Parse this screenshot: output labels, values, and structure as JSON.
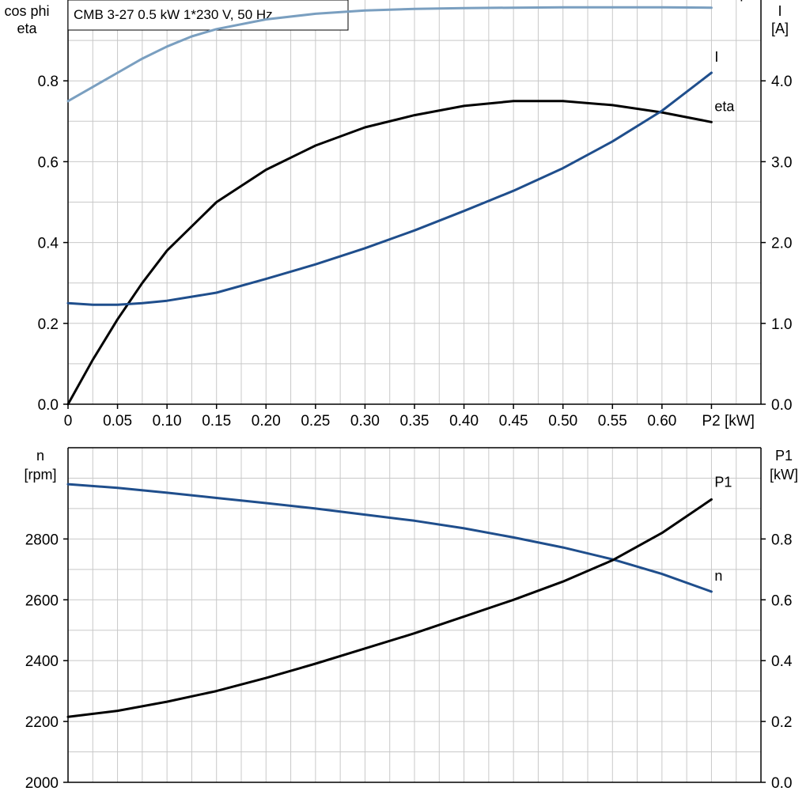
{
  "chart_data": [
    {
      "type": "line",
      "title": "CMB 3-27   0.5 kW   1*230 V, 50 Hz",
      "xlabel": "P2 [kW]",
      "x_ticks": [
        "0",
        "0.05",
        "0.10",
        "0.15",
        "0.20",
        "0.25",
        "0.30",
        "0.35",
        "0.40",
        "0.45",
        "0.50",
        "0.55",
        "0.60",
        "P2 [kW]"
      ],
      "xlim": [
        0,
        0.7
      ],
      "grid": true,
      "left_axis": {
        "label_line1": "cos phi",
        "label_line2": "eta",
        "ylim": [
          0,
          1.0
        ],
        "ticks": [
          0.0,
          0.2,
          0.4,
          0.6,
          0.8
        ],
        "tick_labels": [
          "0.0",
          "0.2",
          "0.4",
          "0.6",
          "0.8"
        ]
      },
      "right_axis": {
        "label_line1": "I",
        "label_line2": "[A]",
        "ylim": [
          0,
          5.0
        ],
        "ticks": [
          0.0,
          1.0,
          2.0,
          3.0,
          4.0
        ],
        "tick_labels": [
          "0.0",
          "1.0",
          "2.0",
          "3.0",
          "4.0"
        ]
      },
      "series": [
        {
          "name": "cos phi",
          "axis": "left",
          "color": "#7a9fc0",
          "x": [
            0,
            0.025,
            0.05,
            0.075,
            0.1,
            0.125,
            0.15,
            0.2,
            0.25,
            0.3,
            0.35,
            0.4,
            0.45,
            0.5,
            0.55,
            0.6,
            0.65
          ],
          "y": [
            0.75,
            0.785,
            0.82,
            0.855,
            0.885,
            0.91,
            0.928,
            0.952,
            0.966,
            0.974,
            0.978,
            0.98,
            0.981,
            0.982,
            0.982,
            0.982,
            0.981
          ]
        },
        {
          "name": "eta",
          "axis": "left",
          "color": "#000000",
          "x": [
            0,
            0.025,
            0.05,
            0.075,
            0.1,
            0.15,
            0.2,
            0.25,
            0.3,
            0.35,
            0.4,
            0.45,
            0.5,
            0.55,
            0.6,
            0.65
          ],
          "y": [
            0.0,
            0.11,
            0.21,
            0.3,
            0.38,
            0.5,
            0.58,
            0.64,
            0.685,
            0.715,
            0.738,
            0.75,
            0.75,
            0.74,
            0.722,
            0.698
          ]
        },
        {
          "name": "I",
          "axis": "right",
          "color": "#1f4e8c",
          "x": [
            0,
            0.025,
            0.05,
            0.075,
            0.1,
            0.15,
            0.2,
            0.25,
            0.3,
            0.35,
            0.4,
            0.45,
            0.5,
            0.55,
            0.6,
            0.65
          ],
          "y": [
            1.25,
            1.23,
            1.23,
            1.25,
            1.28,
            1.38,
            1.55,
            1.73,
            1.93,
            2.15,
            2.39,
            2.64,
            2.92,
            3.25,
            3.63,
            4.1
          ]
        }
      ]
    },
    {
      "type": "line",
      "xlim": [
        0,
        0.7
      ],
      "grid": true,
      "left_axis": {
        "label_line1": "n",
        "label_line2": "[rpm]",
        "ylim": [
          2000,
          3100
        ],
        "ticks": [
          2000,
          2200,
          2400,
          2600,
          2800
        ],
        "tick_labels": [
          "2000",
          "2200",
          "2400",
          "2600",
          "2800"
        ]
      },
      "right_axis": {
        "label_line1": "P1",
        "label_line2": "[kW]",
        "ylim": [
          0,
          1.1
        ],
        "ticks": [
          0.0,
          0.2,
          0.4,
          0.6,
          0.8
        ],
        "tick_labels": [
          "0.0",
          "0.2",
          "0.4",
          "0.6",
          "0.8"
        ]
      },
      "series": [
        {
          "name": "n",
          "axis": "left",
          "color": "#1f4e8c",
          "x": [
            0,
            0.05,
            0.1,
            0.15,
            0.2,
            0.25,
            0.3,
            0.35,
            0.4,
            0.45,
            0.5,
            0.55,
            0.6,
            0.65
          ],
          "y": [
            2980,
            2968,
            2952,
            2935,
            2918,
            2900,
            2880,
            2860,
            2835,
            2805,
            2772,
            2733,
            2685,
            2627
          ]
        },
        {
          "name": "P1",
          "axis": "right",
          "color": "#000000",
          "x": [
            0,
            0.05,
            0.1,
            0.15,
            0.2,
            0.25,
            0.3,
            0.35,
            0.4,
            0.45,
            0.5,
            0.55,
            0.6,
            0.65
          ],
          "y": [
            0.215,
            0.235,
            0.265,
            0.3,
            0.343,
            0.39,
            0.44,
            0.49,
            0.545,
            0.6,
            0.66,
            0.73,
            0.82,
            0.93
          ]
        }
      ]
    }
  ]
}
